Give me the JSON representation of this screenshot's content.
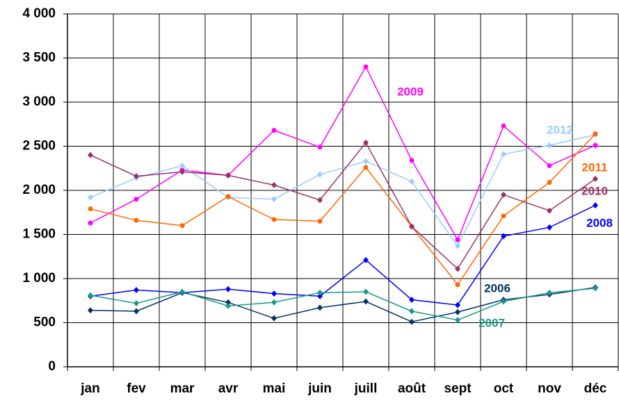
{
  "chart_data": {
    "type": "line",
    "categories": [
      "jan",
      "fev",
      "mar",
      "avr",
      "mai",
      "juin",
      "juill",
      "août",
      "sept",
      "oct",
      "nov",
      "déc"
    ],
    "series": [
      {
        "name": "2009",
        "color": "#ff00ff",
        "values": [
          1630,
          1900,
          2230,
          2170,
          2680,
          2490,
          3400,
          2340,
          1440,
          2730,
          2280,
          2510
        ]
      },
      {
        "name": "2012",
        "color": "#99ccff",
        "values": [
          1920,
          2140,
          2280,
          1920,
          1900,
          2180,
          2330,
          2100,
          1370,
          2410,
          2510,
          2630
        ]
      },
      {
        "name": "2011",
        "color": "#ff6600",
        "values": [
          1790,
          1660,
          1600,
          1930,
          1670,
          1650,
          2260,
          1590,
          930,
          1710,
          2090,
          2640
        ]
      },
      {
        "name": "2010",
        "color": "#993366",
        "values": [
          2400,
          2160,
          2210,
          2170,
          2060,
          1890,
          2540,
          1590,
          1110,
          1950,
          1770,
          2130
        ]
      },
      {
        "name": "2008",
        "color": "#0000ff",
        "values": [
          800,
          870,
          840,
          880,
          830,
          800,
          1210,
          760,
          700,
          1480,
          1580,
          1830
        ]
      },
      {
        "name": "2006",
        "color": "#003366",
        "values": [
          640,
          630,
          840,
          730,
          550,
          670,
          740,
          510,
          620,
          760,
          820,
          900
        ]
      },
      {
        "name": "2007",
        "color": "#1a998a",
        "values": [
          810,
          720,
          850,
          690,
          730,
          840,
          850,
          630,
          530,
          740,
          840,
          890
        ]
      }
    ],
    "ylim": [
      0,
      4000
    ],
    "yticks": [
      0,
      500,
      {
        "value": 1000,
        "label": "1 000"
      },
      {
        "value": 1500,
        "label": "1 500"
      },
      {
        "value": 2000,
        "label": "2 000"
      },
      {
        "value": 2500,
        "label": "2 500"
      },
      {
        "value": 3000,
        "label": "3 000"
      },
      {
        "value": 3500,
        "label": "3 500"
      },
      {
        "value": 4000,
        "label": "4 000"
      }
    ],
    "grid": true
  }
}
